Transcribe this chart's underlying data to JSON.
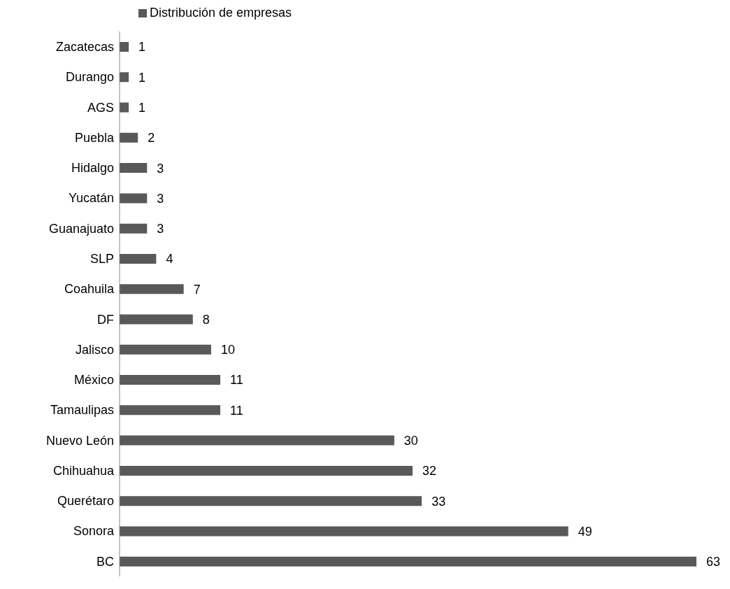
{
  "chart_data": {
    "type": "bar",
    "orientation": "horizontal",
    "categories": [
      "Zacatecas",
      "Durango",
      "AGS",
      "Puebla",
      "Hidalgo",
      "Yucatán",
      "Guanajuato",
      "SLP",
      "Coahuila",
      "DF",
      "Jalisco",
      "México",
      "Tamaulipas",
      "Nuevo León",
      "Chihuahua",
      "Querétaro",
      "Sonora",
      "BC"
    ],
    "series": [
      {
        "name": "Distribución de empresas",
        "color": "#595959",
        "values": [
          1,
          1,
          1,
          2,
          3,
          3,
          3,
          4,
          7,
          8,
          10,
          11,
          11,
          30,
          32,
          33,
          49,
          63
        ]
      }
    ],
    "data_labels": true,
    "legend": "top left",
    "grid": false
  }
}
